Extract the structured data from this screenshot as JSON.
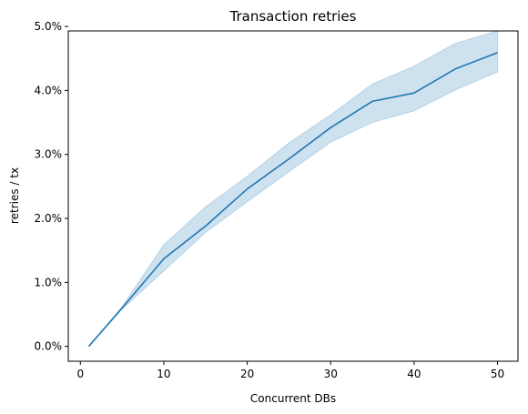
{
  "chart_data": {
    "type": "line",
    "title": "Transaction retries",
    "xlabel": "Concurrent DBs",
    "ylabel": "retries / tx",
    "xlim": [
      -1.45,
      52.45
    ],
    "ylim": [
      -0.00232,
      0.0493
    ],
    "x_ticks": [
      0,
      10,
      20,
      30,
      40,
      50
    ],
    "x_tick_labels": [
      "0",
      "10",
      "20",
      "30",
      "40",
      "50"
    ],
    "y_ticks": [
      0.0,
      0.01,
      0.02,
      0.03,
      0.04,
      0.05
    ],
    "y_tick_labels": [
      "0.0%",
      "1.0%",
      "2.0%",
      "3.0%",
      "4.0%",
      "5.0%"
    ],
    "grid": false,
    "series": [
      {
        "color": "#1f77b4",
        "band_color": "#1f77b4",
        "x": [
          1,
          5,
          10,
          15,
          20,
          25,
          30,
          35,
          40,
          45,
          50
        ],
        "y": [
          0.0,
          0.006,
          0.0137,
          0.0188,
          0.0246,
          0.0293,
          0.0342,
          0.0383,
          0.0396,
          0.0434,
          0.0459
        ],
        "ci_lower": [
          0.0,
          0.0058,
          0.0118,
          0.0178,
          0.0226,
          0.0273,
          0.0319,
          0.035,
          0.0368,
          0.0401,
          0.0429
        ],
        "ci_upper": [
          0.0,
          0.0062,
          0.0159,
          0.0218,
          0.0266,
          0.0318,
          0.0362,
          0.041,
          0.0438,
          0.0474,
          0.0493
        ]
      }
    ]
  }
}
